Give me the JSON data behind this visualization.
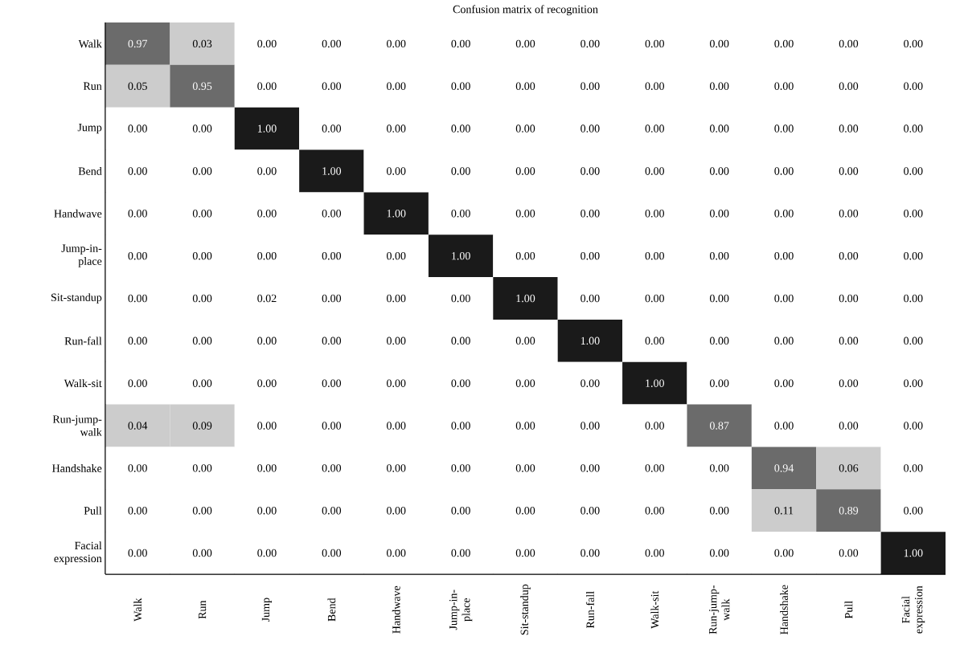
{
  "chart_data": {
    "type": "heatmap",
    "title": "Confusion matrix of recognition",
    "categories": [
      "Walk",
      "Run",
      "Jump",
      "Bend",
      "Handwave",
      "Jump-in-place",
      "Sit-standup",
      "Run-fall",
      "Walk-sit",
      "Run-jump-walk",
      "Handshake",
      "Pull",
      "Facial expression"
    ],
    "y_categories": [
      "Walk",
      "Run",
      "Jump",
      "Bend",
      "Handwave",
      "Jump-in-place",
      "Sit-standup",
      "Run-fall",
      "Walk-sit",
      "Run-jump-walk",
      "Handshake",
      "Pull",
      "Facial expression"
    ],
    "cells": [
      [
        0.97,
        0.03,
        0,
        0,
        0,
        0,
        0,
        0,
        0,
        0,
        0,
        0,
        0
      ],
      [
        0.05,
        0.95,
        0,
        0,
        0,
        0,
        0,
        0,
        0,
        0,
        0,
        0,
        0
      ],
      [
        0,
        0,
        1,
        0,
        0,
        0,
        0,
        0,
        0,
        0,
        0,
        0,
        0
      ],
      [
        0,
        0,
        0,
        1,
        0,
        0,
        0,
        0,
        0,
        0,
        0,
        0,
        0
      ],
      [
        0,
        0,
        0,
        0,
        1,
        0,
        0,
        0,
        0,
        0,
        0,
        0,
        0
      ],
      [
        0,
        0,
        0,
        0,
        0,
        1,
        0,
        0,
        0,
        0,
        0,
        0,
        0
      ],
      [
        0,
        0,
        0.02,
        0,
        0,
        0,
        1,
        0,
        0,
        0,
        0,
        0,
        0
      ],
      [
        0,
        0,
        0,
        0,
        0,
        0,
        0,
        1,
        0,
        0,
        0,
        0,
        0
      ],
      [
        0,
        0,
        0,
        0,
        0,
        0,
        0,
        0,
        1,
        0,
        0,
        0,
        0
      ],
      [
        0.04,
        0.09,
        0,
        0,
        0,
        0,
        0,
        0,
        0,
        0.87,
        0,
        0,
        0
      ],
      [
        0,
        0,
        0,
        0,
        0,
        0,
        0,
        0,
        0,
        0,
        0.94,
        0.06,
        0
      ],
      [
        0,
        0,
        0,
        0,
        0,
        0,
        0,
        0,
        0,
        0,
        0.11,
        0.89,
        0
      ],
      [
        0,
        0,
        0,
        0,
        0,
        0,
        0,
        0,
        0,
        0,
        0,
        0,
        1
      ]
    ],
    "cell_labels": [
      [
        "0.97",
        "0.03",
        "0.00",
        "0.00",
        "0.00",
        "0.00",
        "0.00",
        "0.00",
        "0.00",
        "0.00",
        "0.00",
        "0.00",
        "0.00"
      ],
      [
        "0.05",
        "0.95",
        "0.00",
        "0.00",
        "0.00",
        "0.00",
        "0.00",
        "0.00",
        "0.00",
        "0.00",
        "0.00",
        "0.00",
        "0.00"
      ],
      [
        "0.00",
        "0.00",
        "1.00",
        "0.00",
        "0.00",
        "0.00",
        "0.00",
        "0.00",
        "0.00",
        "0.00",
        "0.00",
        "0.00",
        "0.00"
      ],
      [
        "0.00",
        "0.00",
        "0.00",
        "1.00",
        "0.00",
        "0.00",
        "0.00",
        "0.00",
        "0.00",
        "0.00",
        "0.00",
        "0.00",
        "0.00"
      ],
      [
        "0.00",
        "0.00",
        "0.00",
        "0.00",
        "1.00",
        "0.00",
        "0.00",
        "0.00",
        "0.00",
        "0.00",
        "0.00",
        "0.00",
        "0.00"
      ],
      [
        "0.00",
        "0.00",
        "0.00",
        "0.00",
        "0.00",
        "1.00",
        "0.00",
        "0.00",
        "0.00",
        "0.00",
        "0.00",
        "0.00",
        "0.00"
      ],
      [
        "0.00",
        "0.00",
        "0.02",
        "0.00",
        "0.00",
        "0.00",
        "1.00",
        "0.00",
        "0.00",
        "0.00",
        "0.00",
        "0.00",
        "0.00"
      ],
      [
        "0.00",
        "0.00",
        "0.00",
        "0.00",
        "0.00",
        "0.00",
        "0.00",
        "1.00",
        "0.00",
        "0.00",
        "0.00",
        "0.00",
        "0.00"
      ],
      [
        "0.00",
        "0.00",
        "0.00",
        "0.00",
        "0.00",
        "0.00",
        "0.00",
        "0.00",
        "1.00",
        "0.00",
        "0.00",
        "0.00",
        "0.00"
      ],
      [
        "0.04",
        "0.09",
        "0.00",
        "0.00",
        "0.00",
        "0.00",
        "0.00",
        "0.00",
        "0.00",
        "0.87",
        "0.00",
        "0.00",
        "0.00"
      ],
      [
        "0.00",
        "0.00",
        "0.00",
        "0.00",
        "0.00",
        "0.00",
        "0.00",
        "0.00",
        "0.00",
        "0.00",
        "0.94",
        "0.06",
        "0.00"
      ],
      [
        "0.00",
        "0.00",
        "0.00",
        "0.00",
        "0.00",
        "0.00",
        "0.00",
        "0.00",
        "0.00",
        "0.00",
        "0.11",
        "0.89",
        "0.00"
      ],
      [
        "0.00",
        "0.00",
        "0.00",
        "0.00",
        "0.00",
        "0.00",
        "0.00",
        "0.00",
        "0.00",
        "0.00",
        "0.00",
        "0.00",
        "1.00"
      ]
    ]
  }
}
